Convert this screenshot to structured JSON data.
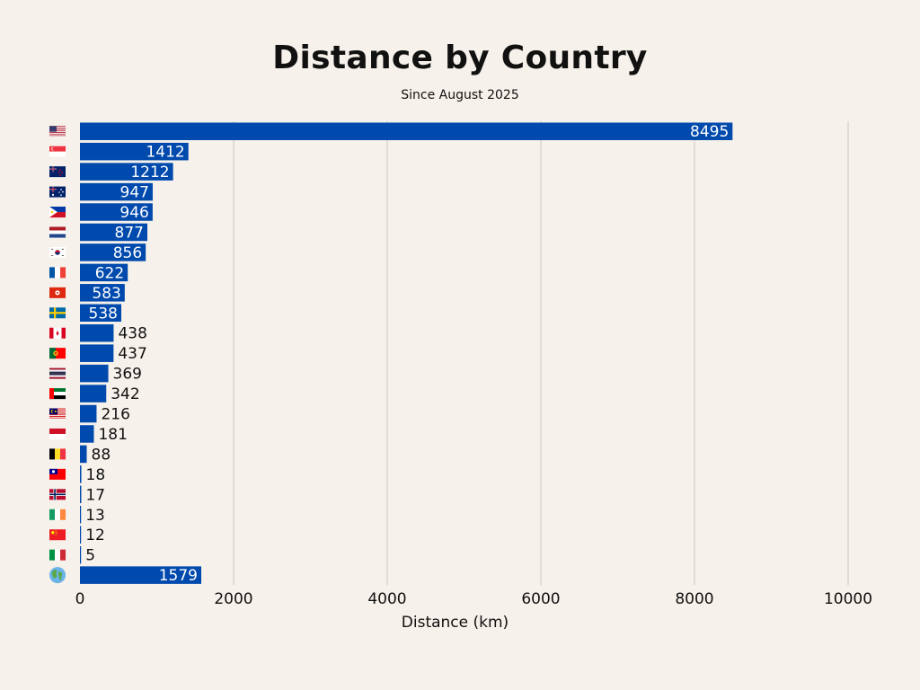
{
  "chart_data": {
    "type": "bar",
    "orientation": "horizontal",
    "title": "Distance by Country",
    "subtitle": "Since August 2025",
    "xlabel": "Distance (km)",
    "ylabel": "",
    "xlim": [
      0,
      10000
    ],
    "xticks": [
      "0",
      "2000",
      "4000",
      "6000",
      "8000",
      "10000"
    ],
    "grid": "vertical",
    "legend": "none",
    "bar_color": "#004aad",
    "categories": [
      {
        "flag": "united-states",
        "value": 8495
      },
      {
        "flag": "singapore",
        "value": 1412
      },
      {
        "flag": "new-zealand",
        "value": 1212
      },
      {
        "flag": "australia",
        "value": 947
      },
      {
        "flag": "philippines",
        "value": 946
      },
      {
        "flag": "netherlands",
        "value": 877
      },
      {
        "flag": "south-korea",
        "value": 856
      },
      {
        "flag": "france",
        "value": 622
      },
      {
        "flag": "hong-kong",
        "value": 583
      },
      {
        "flag": "sweden",
        "value": 538
      },
      {
        "flag": "canada",
        "value": 438
      },
      {
        "flag": "portugal",
        "value": 437
      },
      {
        "flag": "thailand",
        "value": 369
      },
      {
        "flag": "united-arab-emirates",
        "value": 342
      },
      {
        "flag": "malaysia",
        "value": 216
      },
      {
        "flag": "indonesia",
        "value": 181
      },
      {
        "flag": "belgium",
        "value": 88
      },
      {
        "flag": "taiwan",
        "value": 18
      },
      {
        "flag": "norway",
        "value": 17
      },
      {
        "flag": "ireland",
        "value": 13
      },
      {
        "flag": "china",
        "value": 12
      },
      {
        "flag": "italy",
        "value": 5
      },
      {
        "flag": "globe",
        "value": 1579
      }
    ]
  }
}
